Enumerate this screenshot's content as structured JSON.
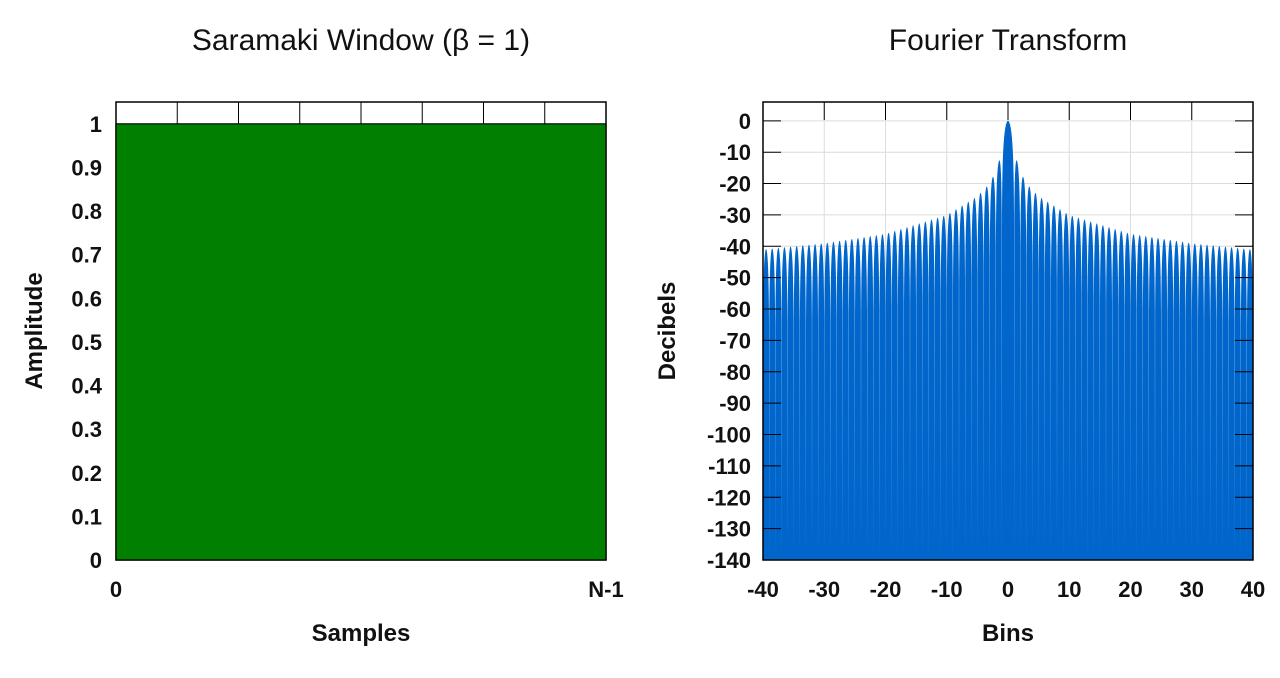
{
  "chart_data": [
    {
      "type": "area",
      "title": "Saramaki Window (β = 1)",
      "xlabel": "Samples",
      "ylabel": "Amplitude",
      "x_ticks": [
        "0",
        "N-1"
      ],
      "y_ticks": [
        "0",
        "0.1",
        "0.2",
        "0.3",
        "0.4",
        "0.5",
        "0.6",
        "0.7",
        "0.8",
        "0.9",
        "1"
      ],
      "ylim": [
        0,
        1.05
      ],
      "series": [
        {
          "x": [
            0,
            1
          ],
          "values": [
            1,
            1
          ]
        }
      ],
      "fill_color": "#007f00",
      "grid": false
    },
    {
      "type": "area",
      "title": "Fourier Transform",
      "xlabel": "Bins",
      "ylabel": "Decibels",
      "xlim": [
        -40,
        40
      ],
      "ylim": [
        -140,
        6
      ],
      "x_ticks": [
        "-40",
        "-30",
        "-20",
        "-10",
        "0",
        "10",
        "20",
        "30",
        "40"
      ],
      "y_ticks": [
        "0",
        "-10",
        "-20",
        "-30",
        "-40",
        "-50",
        "-60",
        "-70",
        "-80",
        "-90",
        "-100",
        "-110",
        "-120",
        "-130",
        "-140"
      ],
      "sidelobe_peaks_db": {
        "bins": [
          0,
          1.5,
          2.5,
          3.5,
          5,
          10,
          20,
          30,
          40
        ],
        "values": [
          0,
          -13,
          -18,
          -21,
          -24,
          -30,
          -36,
          -39,
          -41
        ]
      },
      "fill_color": "#0066cc",
      "grid": true
    }
  ]
}
